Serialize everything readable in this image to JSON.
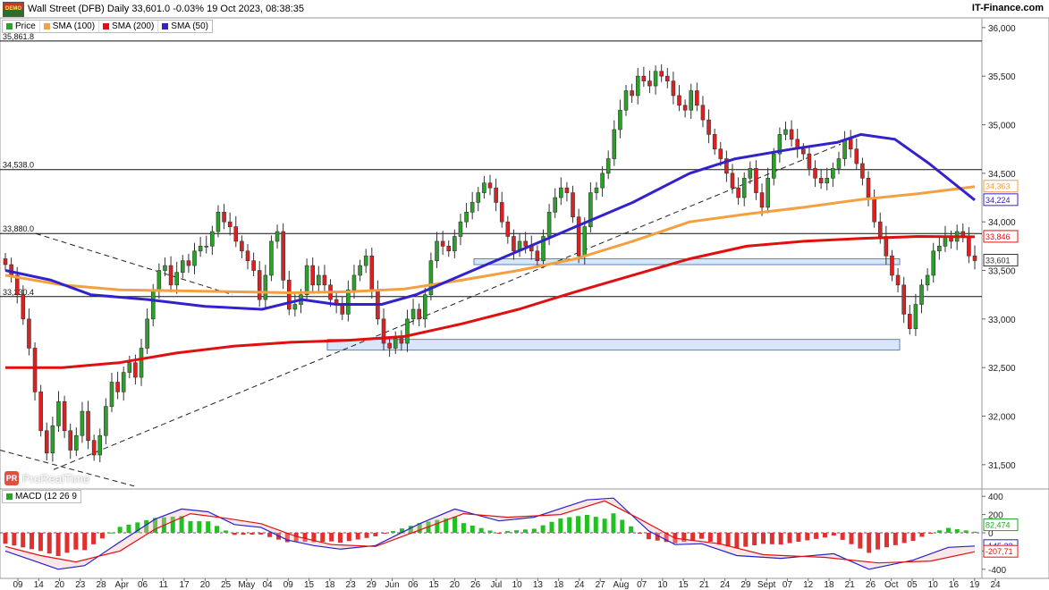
{
  "header": {
    "title": "Wall Street (DFB) Daily 33,601.0 -0.03% 19 Oct 2023, 08:38:35",
    "brand": "IT-Finance.com",
    "demo_badge": "DEMO"
  },
  "legend": [
    {
      "label": "Price",
      "color": "#22a822"
    },
    {
      "label": "SMA (100)",
      "color": "#f4a040"
    },
    {
      "label": "SMA (200)",
      "color": "#e01010"
    },
    {
      "label": "SMA (50)",
      "color": "#3322cc"
    }
  ],
  "watermark": "ProRealTime",
  "chart_data": [
    {
      "type": "candlestick",
      "title": "Wall Street (DFB) Daily 33,601.0 -0.03% 19 Oct 2023, 08:38:35",
      "ylim": [
        31250,
        36100
      ],
      "y_ticks": [
        31500,
        32000,
        32500,
        33000,
        33500,
        34000,
        34500,
        35000,
        35500,
        36000
      ],
      "y_tick_labels": [
        "31,500",
        "32,000",
        "32,500",
        "33,000",
        "33,500",
        "34,000",
        "34,500",
        "35,000",
        "35,500",
        "36,000"
      ],
      "x_tick_labels": [
        "09",
        "14",
        "20",
        "23",
        "28",
        "Apr",
        "06",
        "11",
        "17",
        "20",
        "25",
        "May",
        "04",
        "09",
        "15",
        "18",
        "23",
        "29",
        "Jun",
        "06",
        "15",
        "20",
        "26",
        "Jul",
        "10",
        "13",
        "18",
        "24",
        "27",
        "Aug",
        "07",
        "10",
        "15",
        "21",
        "24",
        "29",
        "Sept",
        "07",
        "12",
        "18",
        "21",
        "26",
        "Oct",
        "05",
        "10",
        "16",
        "19",
        "24"
      ],
      "horizontal_levels": [
        {
          "label": "35,861.8",
          "value": 35861.8
        },
        {
          "label": "34,538.0",
          "value": 34538
        },
        {
          "label": "33,880.0",
          "value": 33880
        },
        {
          "label": "33,230.4",
          "value": 33230.4
        }
      ],
      "right_labels": [
        {
          "label": "34,363",
          "value": 34363,
          "color": "#f4a040"
        },
        {
          "label": "34,224",
          "value": 34224,
          "color": "#3322cc"
        },
        {
          "label": "33,846",
          "value": 33846,
          "color": "#e01010"
        },
        {
          "label": "33,601",
          "value": 33601,
          "color": "#333333"
        }
      ],
      "zones": [
        {
          "from": 33560,
          "to": 33620
        },
        {
          "from": 32680,
          "to": 32790
        }
      ],
      "closes": [
        33560,
        33450,
        33250,
        33000,
        32700,
        32250,
        31850,
        31620,
        31900,
        32150,
        31850,
        31650,
        31800,
        32050,
        31750,
        31600,
        31800,
        32100,
        32350,
        32250,
        32450,
        32550,
        32400,
        32700,
        33000,
        33300,
        33500,
        33550,
        33350,
        33480,
        33600,
        33550,
        33700,
        33750,
        33750,
        33900,
        34100,
        34000,
        33950,
        33800,
        33700,
        33600,
        33500,
        33200,
        33450,
        33800,
        33900,
        33400,
        33100,
        33150,
        33250,
        33550,
        33350,
        33450,
        33350,
        33200,
        33150,
        33050,
        33300,
        33450,
        33550,
        33650,
        33300,
        33000,
        32750,
        32700,
        32800,
        32750,
        33000,
        33100,
        33000,
        33250,
        33600,
        33800,
        33750,
        33700,
        33850,
        34000,
        34100,
        34200,
        34300,
        34400,
        34350,
        34200,
        34000,
        33850,
        33700,
        33800,
        33750,
        33700,
        33600,
        33850,
        34100,
        34250,
        34350,
        34300,
        34050,
        33650,
        33950,
        34300,
        34350,
        34500,
        34650,
        34950,
        35150,
        35350,
        35300,
        35500,
        35450,
        35400,
        35550,
        35500,
        35450,
        35300,
        35200,
        35150,
        35350,
        35200,
        35050,
        34900,
        34750,
        34650,
        34500,
        34350,
        34250,
        34450,
        34550,
        34300,
        34150,
        34450,
        34700,
        34900,
        34950,
        34850,
        34750,
        34700,
        34550,
        34450,
        34400,
        34450,
        34550,
        34650,
        34850,
        34750,
        34600,
        34450,
        34250,
        34000,
        33850,
        33650,
        33450,
        33350,
        33050,
        32900,
        33150,
        33350,
        33450,
        33700,
        33750,
        33850,
        33800,
        33900,
        33850,
        33650,
        33601
      ],
      "series": [
        {
          "name": "SMA (100)",
          "color": "#f4a040",
          "knots": [
            [
              0,
              33450
            ],
            [
              10,
              33350
            ],
            [
              20,
              33300
            ],
            [
              30,
              33290
            ],
            [
              40,
              33280
            ],
            [
              50,
              33270
            ],
            [
              60,
              33280
            ],
            [
              70,
              33310
            ],
            [
              80,
              33400
            ],
            [
              90,
              33500
            ],
            [
              100,
              33620
            ],
            [
              110,
              33800
            ],
            [
              120,
              34000
            ],
            [
              130,
              34080
            ],
            [
              140,
              34150
            ],
            [
              150,
              34230
            ],
            [
              160,
              34290
            ],
            [
              170,
              34363
            ]
          ]
        },
        {
          "name": "SMA (200)",
          "color": "#e01010",
          "knots": [
            [
              0,
              32500
            ],
            [
              10,
              32500
            ],
            [
              20,
              32550
            ],
            [
              30,
              32650
            ],
            [
              40,
              32720
            ],
            [
              50,
              32760
            ],
            [
              60,
              32780
            ],
            [
              70,
              32820
            ],
            [
              80,
              32950
            ],
            [
              90,
              33100
            ],
            [
              100,
              33280
            ],
            [
              110,
              33450
            ],
            [
              120,
              33620
            ],
            [
              130,
              33750
            ],
            [
              140,
              33800
            ],
            [
              150,
              33830
            ],
            [
              160,
              33850
            ],
            [
              170,
              33846
            ]
          ]
        },
        {
          "name": "SMA (50)",
          "color": "#3322cc",
          "knots": [
            [
              0,
              33500
            ],
            [
              8,
              33400
            ],
            [
              15,
              33250
            ],
            [
              25,
              33200
            ],
            [
              35,
              33130
            ],
            [
              45,
              33100
            ],
            [
              52,
              33200
            ],
            [
              58,
              33150
            ],
            [
              66,
              33150
            ],
            [
              72,
              33250
            ],
            [
              80,
              33450
            ],
            [
              90,
              33700
            ],
            [
              100,
              33950
            ],
            [
              110,
              34200
            ],
            [
              120,
              34500
            ],
            [
              128,
              34650
            ],
            [
              138,
              34750
            ],
            [
              146,
              34820
            ],
            [
              150,
              34900
            ],
            [
              156,
              34850
            ],
            [
              162,
              34600
            ],
            [
              170,
              34224
            ]
          ]
        }
      ]
    },
    {
      "type": "bar",
      "title": "MACD (12 26 9",
      "ylim": [
        -500,
        480
      ],
      "y_ticks": [
        400,
        200,
        0,
        -200,
        -400
      ],
      "y_tick_labels": [
        "400",
        "200",
        "0",
        "-200",
        "-400"
      ],
      "right_labels": [
        {
          "label": "82,474",
          "value": 82.474,
          "color": "#22a822"
        },
        {
          "label": "-145,23",
          "value": -145.23,
          "color": "#2222cc"
        },
        {
          "label": "-207,71",
          "value": -207.71,
          "color": "#e01010"
        }
      ],
      "series": [
        {
          "name": "MACD",
          "color": "#2222cc",
          "knots": [
            [
              0,
              -200
            ],
            [
              6,
              -300
            ],
            [
              12,
              -400
            ],
            [
              18,
              -360
            ],
            [
              26,
              -100
            ],
            [
              34,
              150
            ],
            [
              40,
              260
            ],
            [
              46,
              230
            ],
            [
              52,
              90
            ],
            [
              58,
              60
            ],
            [
              64,
              -80
            ],
            [
              70,
              -140
            ],
            [
              76,
              -180
            ],
            [
              84,
              -140
            ],
            [
              94,
              100
            ],
            [
              102,
              260
            ],
            [
              112,
              130
            ],
            [
              120,
              170
            ],
            [
              132,
              360
            ],
            [
              138,
              380
            ],
            [
              146,
              20
            ],
            [
              152,
              -130
            ],
            [
              158,
              -120
            ],
            [
              166,
              -250
            ],
            [
              176,
              -280
            ],
            [
              188,
              -230
            ],
            [
              196,
              -400
            ],
            [
              206,
              -300
            ],
            [
              214,
              -160
            ],
            [
              220,
              -145
            ]
          ]
        },
        {
          "name": "Signal",
          "color": "#e01010",
          "knots": [
            [
              0,
              -150
            ],
            [
              8,
              -250
            ],
            [
              16,
              -320
            ],
            [
              26,
              -200
            ],
            [
              34,
              40
            ],
            [
              42,
              210
            ],
            [
              50,
              160
            ],
            [
              58,
              100
            ],
            [
              66,
              -40
            ],
            [
              74,
              -130
            ],
            [
              84,
              -150
            ],
            [
              94,
              30
            ],
            [
              104,
              210
            ],
            [
              114,
              170
            ],
            [
              126,
              200
            ],
            [
              136,
              350
            ],
            [
              144,
              150
            ],
            [
              152,
              -60
            ],
            [
              162,
              -120
            ],
            [
              172,
              -240
            ],
            [
              186,
              -270
            ],
            [
              198,
              -330
            ],
            [
              210,
              -310
            ],
            [
              220,
              -208
            ]
          ]
        }
      ]
    }
  ]
}
